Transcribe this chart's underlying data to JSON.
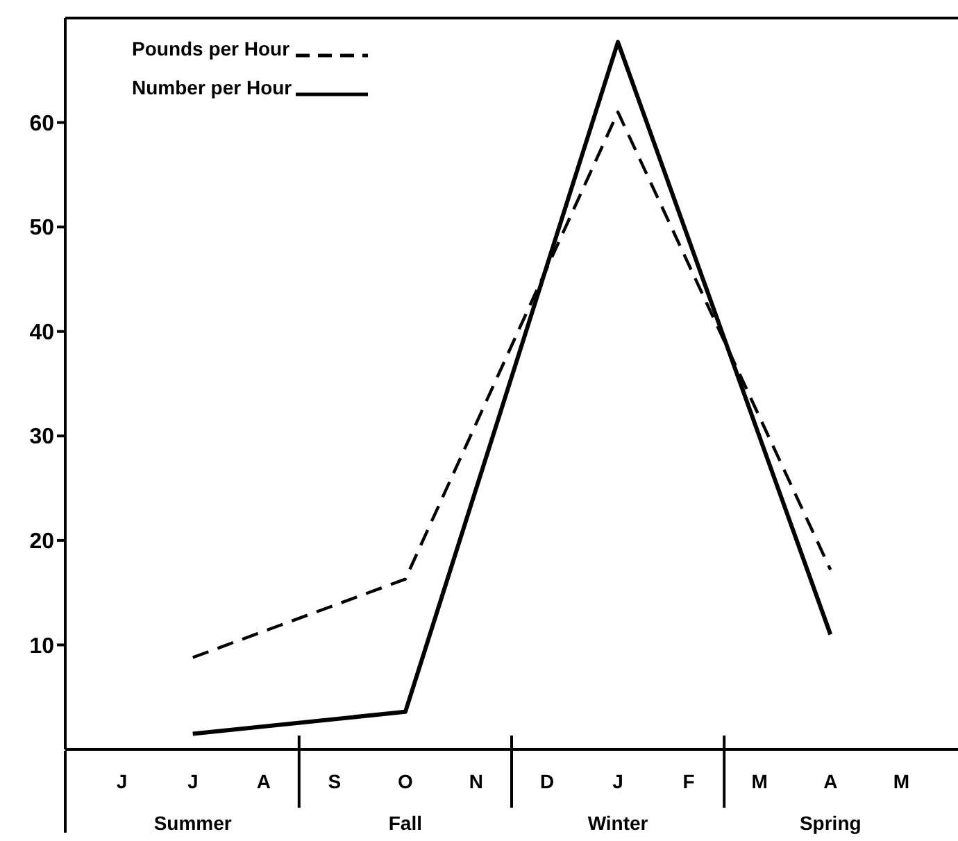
{
  "chart_data": {
    "type": "line",
    "categories": [
      "J",
      "J",
      "A",
      "S",
      "O",
      "N",
      "D",
      "J",
      "F",
      "M",
      "A",
      "M"
    ],
    "series": [
      {
        "name": "Pounds per Hour",
        "color": "#000000",
        "line_style": "dashed",
        "values": [
          null,
          8.8,
          null,
          null,
          16.3,
          null,
          null,
          61,
          null,
          null,
          17.2,
          null
        ]
      },
      {
        "name": "Number per Hour",
        "color": "#000000",
        "line_style": "solid",
        "values": [
          null,
          1.5,
          null,
          null,
          3.6,
          null,
          null,
          67.7,
          null,
          null,
          11,
          null
        ]
      }
    ],
    "annotations": [
      "Summer",
      "Fall",
      "Winter",
      "Spring"
    ],
    "ylim": [
      0,
      70
    ],
    "yticks": [
      10,
      20,
      30,
      40,
      50,
      60
    ],
    "legend": "top left",
    "grid": false,
    "marker": "none"
  }
}
